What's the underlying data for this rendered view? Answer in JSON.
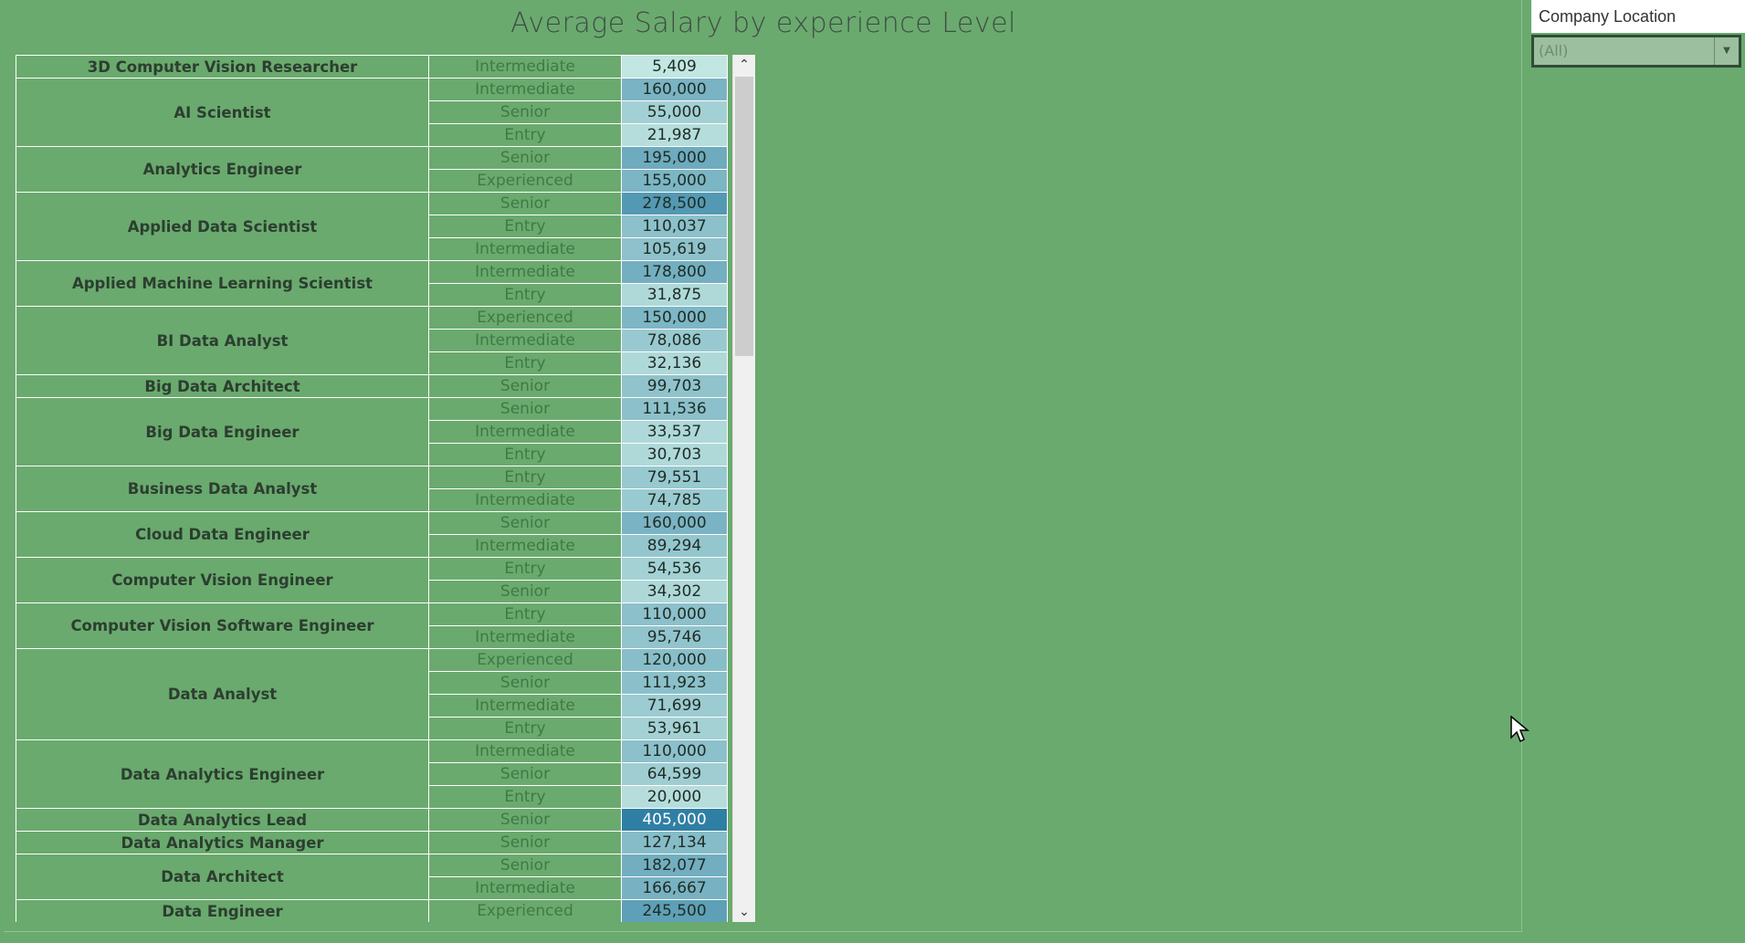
{
  "title": "Average Salary by experience Level",
  "filter": {
    "label": "Company Location",
    "value": "(All)"
  },
  "color_scale": {
    "low": "#c2e6e1",
    "high": "#2f7fa4"
  },
  "rows": [
    {
      "job": "3D Computer Vision Researcher",
      "levels": [
        [
          "Intermediate",
          "5,409",
          5409
        ]
      ]
    },
    {
      "job": "AI Scientist",
      "levels": [
        [
          "Intermediate",
          "160,000",
          160000
        ],
        [
          "Senior",
          "55,000",
          55000
        ],
        [
          "Entry",
          "21,987",
          21987
        ]
      ]
    },
    {
      "job": "Analytics Engineer",
      "levels": [
        [
          "Senior",
          "195,000",
          195000
        ],
        [
          "Experienced",
          "155,000",
          155000
        ]
      ]
    },
    {
      "job": "Applied Data Scientist",
      "levels": [
        [
          "Senior",
          "278,500",
          278500
        ],
        [
          "Entry",
          "110,037",
          110037
        ],
        [
          "Intermediate",
          "105,619",
          105619
        ]
      ]
    },
    {
      "job": "Applied Machine Learning Scientist",
      "levels": [
        [
          "Intermediate",
          "178,800",
          178800
        ],
        [
          "Entry",
          "31,875",
          31875
        ]
      ]
    },
    {
      "job": "BI Data Analyst",
      "levels": [
        [
          "Experienced",
          "150,000",
          150000
        ],
        [
          "Intermediate",
          "78,086",
          78086
        ],
        [
          "Entry",
          "32,136",
          32136
        ]
      ]
    },
    {
      "job": "Big Data Architect",
      "levels": [
        [
          "Senior",
          "99,703",
          99703
        ]
      ]
    },
    {
      "job": "Big Data Engineer",
      "levels": [
        [
          "Senior",
          "111,536",
          111536
        ],
        [
          "Intermediate",
          "33,537",
          33537
        ],
        [
          "Entry",
          "30,703",
          30703
        ]
      ]
    },
    {
      "job": "Business Data Analyst",
      "levels": [
        [
          "Entry",
          "79,551",
          79551
        ],
        [
          "Intermediate",
          "74,785",
          74785
        ]
      ]
    },
    {
      "job": "Cloud Data Engineer",
      "levels": [
        [
          "Senior",
          "160,000",
          160000
        ],
        [
          "Intermediate",
          "89,294",
          89294
        ]
      ]
    },
    {
      "job": "Computer Vision Engineer",
      "levels": [
        [
          "Entry",
          "54,536",
          54536
        ],
        [
          "Senior",
          "34,302",
          34302
        ]
      ]
    },
    {
      "job": "Computer Vision Software Engineer",
      "levels": [
        [
          "Entry",
          "110,000",
          110000
        ],
        [
          "Intermediate",
          "95,746",
          95746
        ]
      ]
    },
    {
      "job": "Data Analyst",
      "levels": [
        [
          "Experienced",
          "120,000",
          120000
        ],
        [
          "Senior",
          "111,923",
          111923
        ],
        [
          "Intermediate",
          "71,699",
          71699
        ],
        [
          "Entry",
          "53,961",
          53961
        ]
      ]
    },
    {
      "job": "Data Analytics Engineer",
      "levels": [
        [
          "Intermediate",
          "110,000",
          110000
        ],
        [
          "Senior",
          "64,599",
          64599
        ],
        [
          "Entry",
          "20,000",
          20000
        ]
      ]
    },
    {
      "job": "Data Analytics Lead",
      "levels": [
        [
          "Senior",
          "405,000",
          405000
        ]
      ]
    },
    {
      "job": "Data Analytics Manager",
      "levels": [
        [
          "Senior",
          "127,134",
          127134
        ]
      ]
    },
    {
      "job": "Data Architect",
      "levels": [
        [
          "Senior",
          "182,077",
          182077
        ],
        [
          "Intermediate",
          "166,667",
          166667
        ]
      ]
    },
    {
      "job": "Data Engineer",
      "levels": [
        [
          "Experienced",
          "245,500",
          245500
        ]
      ]
    }
  ]
}
